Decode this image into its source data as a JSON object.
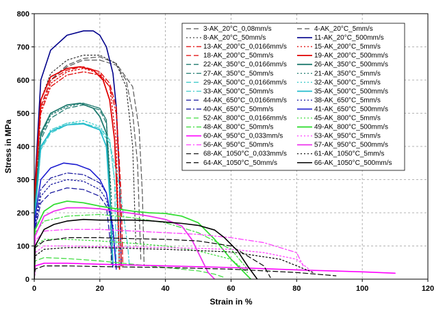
{
  "chart_data": {
    "type": "line",
    "xlabel": "Strain in %",
    "ylabel": "Stress in MPa",
    "xlim": [
      0,
      120
    ],
    "ylim": [
      0,
      800
    ],
    "x_ticks": [
      "0",
      "20",
      "40",
      "60",
      "80",
      "100",
      "120"
    ],
    "y_ticks": [
      "0",
      "100",
      "200",
      "300",
      "400",
      "500",
      "600",
      "700",
      "800"
    ],
    "grid": true,
    "legend_position": "top-right",
    "series": [
      {
        "name": "3-AK_20°C_0,08mm/s",
        "color": "#555555",
        "dash": "longdash",
        "width": 1.2,
        "x": [
          0,
          0.3,
          2,
          5,
          10,
          15,
          20,
          25,
          28,
          30,
          31.5,
          32.5
        ],
        "y": [
          0,
          250,
          520,
          600,
          640,
          660,
          660,
          645,
          600,
          500,
          350,
          60
        ]
      },
      {
        "name": "4-AK_20°C_5mm/s",
        "color": "#555555",
        "dash": "longdash",
        "width": 1.2,
        "x": [
          0,
          0.3,
          2,
          5,
          10,
          15,
          20,
          25,
          30,
          32,
          33,
          33.5
        ],
        "y": [
          0,
          250,
          520,
          600,
          645,
          665,
          670,
          650,
          580,
          450,
          250,
          40
        ]
      },
      {
        "name": "8-AK_20°C_50mm/s",
        "color": "#333333",
        "dash": "dot",
        "width": 1.2,
        "x": [
          0,
          0.3,
          2,
          5,
          10,
          15,
          20,
          25,
          28,
          30,
          31
        ],
        "y": [
          0,
          250,
          540,
          620,
          660,
          675,
          675,
          650,
          580,
          400,
          100
        ]
      },
      {
        "name": "11-AK_20°C_500mm/s",
        "color": "#00008b",
        "dash": "solid",
        "width": 1.6,
        "x": [
          0,
          0.3,
          2,
          5,
          10,
          15,
          18,
          20,
          22,
          24,
          25,
          26,
          26.5
        ],
        "y": [
          0,
          300,
          600,
          690,
          735,
          748,
          748,
          735,
          700,
          620,
          520,
          300,
          40
        ]
      },
      {
        "name": "13-AK_200°C_0,0166mm/s",
        "color": "#e00000",
        "dash": "dashdot",
        "width": 1.3,
        "x": [
          0,
          0.3,
          2,
          5,
          10,
          15,
          20,
          23,
          25,
          26,
          26.5
        ],
        "y": [
          0,
          250,
          500,
          580,
          615,
          625,
          615,
          580,
          500,
          300,
          40
        ]
      },
      {
        "name": "15-AK_200°C_5mm/s",
        "color": "#e00000",
        "dash": "dot",
        "width": 1.3,
        "x": [
          0,
          0.3,
          2,
          5,
          10,
          15,
          20,
          23,
          25,
          26
        ],
        "y": [
          0,
          250,
          510,
          590,
          625,
          635,
          620,
          580,
          420,
          40
        ]
      },
      {
        "name": "18-AK_200°C_50mm/s",
        "color": "#e00000",
        "dash": "longdash",
        "width": 1.3,
        "x": [
          0,
          0.3,
          2,
          5,
          10,
          15,
          20,
          23,
          25,
          26.5,
          27
        ],
        "y": [
          0,
          260,
          520,
          600,
          630,
          640,
          625,
          590,
          520,
          250,
          40
        ]
      },
      {
        "name": "19-AK_200°C_500mm/s",
        "color": "#e00000",
        "dash": "solid",
        "width": 1.8,
        "x": [
          0,
          0.3,
          2,
          5,
          10,
          14,
          18,
          21,
          23,
          24.5,
          25.5,
          26
        ],
        "y": [
          0,
          280,
          540,
          610,
          635,
          640,
          630,
          600,
          540,
          420,
          200,
          30
        ]
      },
      {
        "name": "22-AK_350°C_0,0166mm/s",
        "color": "#1f7a6f",
        "dash": "longdash",
        "width": 1.3,
        "x": [
          0,
          0.3,
          2,
          5,
          10,
          15,
          20,
          22,
          23,
          24
        ],
        "y": [
          0,
          220,
          420,
          485,
          515,
          525,
          510,
          470,
          300,
          40
        ]
      },
      {
        "name": "21-AK_350°C_5mm/s",
        "color": "#1f7a6f",
        "dash": "dot",
        "width": 1.3,
        "x": [
          0,
          0.3,
          2,
          5,
          10,
          15,
          20,
          22,
          23.5,
          24
        ],
        "y": [
          0,
          220,
          430,
          495,
          520,
          530,
          515,
          480,
          250,
          40
        ]
      },
      {
        "name": "27-AK_350°C_50mm/s",
        "color": "#1f7a6f",
        "dash": "dashdot",
        "width": 1.3,
        "x": [
          0,
          0.3,
          2,
          5,
          10,
          15,
          20,
          22,
          23,
          23.5
        ],
        "y": [
          0,
          220,
          430,
          500,
          525,
          530,
          515,
          480,
          300,
          40
        ]
      },
      {
        "name": "26-AK_350°C_500mm/s",
        "color": "#1f7a6f",
        "dash": "solid",
        "width": 1.8,
        "x": [
          0,
          0.3,
          2,
          5,
          10,
          14,
          18,
          20,
          22,
          23,
          24
        ],
        "y": [
          0,
          230,
          440,
          500,
          525,
          530,
          515,
          490,
          440,
          260,
          40
        ]
      },
      {
        "name": "29-AK_500°C_0,0166mm/s",
        "color": "#44cccc",
        "dash": "longdash",
        "width": 1.3,
        "x": [
          0,
          0.3,
          2,
          5,
          10,
          15,
          20,
          23,
          24.5,
          25
        ],
        "y": [
          0,
          200,
          390,
          440,
          465,
          470,
          455,
          420,
          300,
          40
        ]
      },
      {
        "name": "32-AK_500°C_5mm/s",
        "color": "#44cccc",
        "dash": "dot",
        "width": 1.3,
        "x": [
          0,
          0.3,
          2,
          5,
          10,
          15,
          20,
          23,
          25,
          26
        ],
        "y": [
          0,
          200,
          395,
          445,
          470,
          478,
          460,
          420,
          250,
          40
        ]
      },
      {
        "name": "33-AK_500°C_50mm/s",
        "color": "#44cccc",
        "dash": "dashdot",
        "width": 1.3,
        "x": [
          0,
          0.3,
          2,
          5,
          10,
          15,
          20,
          23,
          26,
          28.5,
          29
        ],
        "y": [
          0,
          200,
          395,
          450,
          470,
          470,
          450,
          410,
          280,
          100,
          40
        ]
      },
      {
        "name": "35-AK_500°C_500mm/s",
        "color": "#22bbcc",
        "dash": "solid",
        "width": 1.8,
        "x": [
          0,
          0.3,
          2,
          5,
          10,
          15,
          20,
          22,
          23,
          24
        ],
        "y": [
          0,
          200,
          400,
          445,
          465,
          468,
          450,
          400,
          250,
          40
        ]
      },
      {
        "name": "44-AK_650°C_0,0166mm/s",
        "color": "#1a1aa0",
        "dash": "longdash",
        "width": 1.3,
        "x": [
          0,
          0.3,
          2,
          5,
          10,
          15,
          20,
          22,
          23,
          24
        ],
        "y": [
          0,
          150,
          230,
          260,
          275,
          270,
          250,
          220,
          130,
          30
        ]
      },
      {
        "name": "38-AK_650°C_5mm/s",
        "color": "#1a1aa0",
        "dash": "dot",
        "width": 1.3,
        "x": [
          0,
          0.3,
          2,
          5,
          10,
          15,
          20,
          22,
          24,
          25
        ],
        "y": [
          0,
          160,
          250,
          285,
          300,
          295,
          270,
          240,
          150,
          30
        ]
      },
      {
        "name": "40-AK_650°C_50mm/s",
        "color": "#1a1aa0",
        "dash": "dashdot",
        "width": 1.3,
        "x": [
          0,
          0.3,
          2,
          5,
          10,
          15,
          20,
          22,
          24,
          25
        ],
        "y": [
          0,
          170,
          270,
          305,
          320,
          315,
          290,
          260,
          160,
          30
        ]
      },
      {
        "name": "41-AK_650°C_500mm/s",
        "color": "#1c1cd0",
        "dash": "solid",
        "width": 1.6,
        "x": [
          0,
          0.3,
          2,
          5,
          9,
          13,
          17,
          20,
          22,
          24,
          25
        ],
        "y": [
          0,
          190,
          300,
          335,
          350,
          345,
          330,
          300,
          260,
          150,
          30
        ]
      },
      {
        "name": "52-AK_800°C_0,0166mm/s",
        "color": "#44dd44",
        "dash": "longdash",
        "width": 1.3,
        "x": [
          0,
          0.3,
          3,
          10,
          20,
          30,
          40,
          50,
          55,
          58
        ],
        "y": [
          0,
          55,
          65,
          62,
          55,
          45,
          35,
          25,
          15,
          5
        ]
      },
      {
        "name": "45-AK_800°C_5mm/s",
        "color": "#44dd44",
        "dash": "dot",
        "width": 1.3,
        "x": [
          0,
          0.3,
          3,
          10,
          20,
          30,
          40,
          50,
          60,
          65
        ],
        "y": [
          0,
          100,
          120,
          120,
          115,
          108,
          100,
          85,
          60,
          20
        ]
      },
      {
        "name": "48-AK_800°C_50mm/s",
        "color": "#44dd44",
        "dash": "dashdot",
        "width": 1.3,
        "x": [
          0,
          0.3,
          3,
          10,
          20,
          30,
          40,
          50,
          60,
          65
        ],
        "y": [
          0,
          140,
          175,
          190,
          195,
          185,
          170,
          140,
          90,
          30
        ]
      },
      {
        "name": "49-AK_800°C_500mm/s",
        "color": "#33dd33",
        "dash": "solid",
        "width": 1.8,
        "x": [
          0,
          0.3,
          3,
          6,
          10,
          15,
          20,
          25,
          30,
          35,
          40,
          45,
          50,
          55,
          60,
          64,
          66
        ],
        "y": [
          0,
          150,
          205,
          225,
          235,
          230,
          220,
          212,
          205,
          200,
          198,
          190,
          170,
          120,
          60,
          20,
          0
        ]
      },
      {
        "name": "60-AK_950°C_0,033mm/s",
        "color": "#ff00ff",
        "dash": "solid",
        "width": 1.6,
        "x": [
          0,
          0.3,
          3,
          10,
          20,
          40,
          60,
          80,
          100,
          110
        ],
        "y": [
          0,
          40,
          48,
          48,
          45,
          40,
          35,
          28,
          22,
          18
        ]
      },
      {
        "name": "53-AK_950°C_5mm/s",
        "color": "#ff44ff",
        "dash": "dot",
        "width": 1.3,
        "x": [
          0,
          0.3,
          3,
          10,
          20,
          40,
          60,
          70,
          80,
          85
        ],
        "y": [
          0,
          80,
          100,
          100,
          98,
          95,
          90,
          80,
          60,
          20
        ]
      },
      {
        "name": "56-AK_950°C_50mm/s",
        "color": "#ff44ff",
        "dash": "dashdot",
        "width": 1.3,
        "x": [
          0,
          0.3,
          3,
          10,
          20,
          30,
          40,
          50,
          60,
          70,
          80,
          82
        ],
        "y": [
          0,
          115,
          145,
          150,
          150,
          145,
          140,
          135,
          125,
          110,
          80,
          40
        ]
      },
      {
        "name": "57-AK_950°C_500mm/s",
        "color": "#ee33ee",
        "dash": "solid",
        "width": 1.8,
        "x": [
          0,
          0.3,
          3,
          6,
          10,
          15,
          20,
          25,
          30,
          35,
          40,
          45,
          48,
          51,
          53,
          55
        ],
        "y": [
          0,
          130,
          190,
          205,
          215,
          215,
          212,
          205,
          198,
          190,
          180,
          160,
          120,
          60,
          20,
          0
        ]
      },
      {
        "name": "68-AK_1050°C_0,033mm/s",
        "color": "#000000",
        "dash": "longdash",
        "width": 1.2,
        "x": [
          0,
          0.3,
          3,
          10,
          20,
          40,
          60,
          80,
          92
        ],
        "y": [
          0,
          30,
          40,
          40,
          38,
          35,
          30,
          20,
          10
        ]
      },
      {
        "name": "61-AK_1050°C_5mm/s",
        "color": "#000000",
        "dash": "dot",
        "width": 1.2,
        "x": [
          0,
          0.3,
          3,
          10,
          20,
          40,
          60,
          75,
          85
        ],
        "y": [
          0,
          70,
          90,
          95,
          95,
          90,
          82,
          60,
          20
        ]
      },
      {
        "name": "64-AK_1050°C_50mm/s",
        "color": "#000000",
        "dash": "longdash",
        "width": 1.2,
        "x": [
          0,
          0.3,
          3,
          10,
          20,
          30,
          40,
          50,
          60,
          70,
          72
        ],
        "y": [
          0,
          95,
          115,
          125,
          125,
          122,
          120,
          115,
          100,
          40,
          5
        ]
      },
      {
        "name": "66-AK_1050°C_500mm/s",
        "color": "#000000",
        "dash": "solid",
        "width": 1.6,
        "x": [
          0,
          0.3,
          3,
          6,
          10,
          15,
          20,
          25,
          30,
          35,
          40,
          45,
          50,
          55,
          58,
          62,
          65,
          68
        ],
        "y": [
          0,
          100,
          150,
          165,
          175,
          180,
          178,
          178,
          178,
          176,
          172,
          168,
          162,
          148,
          125,
          85,
          40,
          0
        ]
      }
    ],
    "legend_order": [
      "3-AK_20°C_0,08mm/s",
      "4-AK_20°C_5mm/s",
      "8-AK_20°C_50mm/s",
      "11-AK_20°C_500mm/s",
      "13-AK_200°C_0,0166mm/s",
      "15-AK_200°C_5mm/s",
      "18-AK_200°C_50mm/s",
      "19-AK_200°C_500mm/s",
      "22-AK_350°C_0,0166mm/s",
      "26-AK_350°C_500mm/s",
      "27-AK_350°C_50mm/s",
      "21-AK_350°C_5mm/s",
      "29-AK_500°C_0,0166mm/s",
      "32-AK_500°C_5mm/s",
      "33-AK_500°C_50mm/s",
      "35-AK_500°C_500mm/s",
      "44-AK_650°C_0,0166mm/s",
      "38-AK_650°C_5mm/s",
      "40-AK_650°C_50mm/s",
      "41-AK_650°C_500mm/s",
      "52-AK_800°C_0,0166mm/s",
      "45-AK_800°C_5mm/s",
      "48-AK_800°C_50mm/s",
      "49-AK_800°C_500mm/s",
      "60-AK_950°C_0,033mm/s",
      "53-AK_950°C_5mm/s",
      "56-AK_950°C_50mm/s",
      "57-AK_950°C_500mm/s",
      "68-AK_1050°C_0,033mm/s",
      "61-AK_1050°C_5mm/s",
      "64-AK_1050°C_50mm/s",
      "66-AK_1050°C_500mm/s"
    ]
  }
}
